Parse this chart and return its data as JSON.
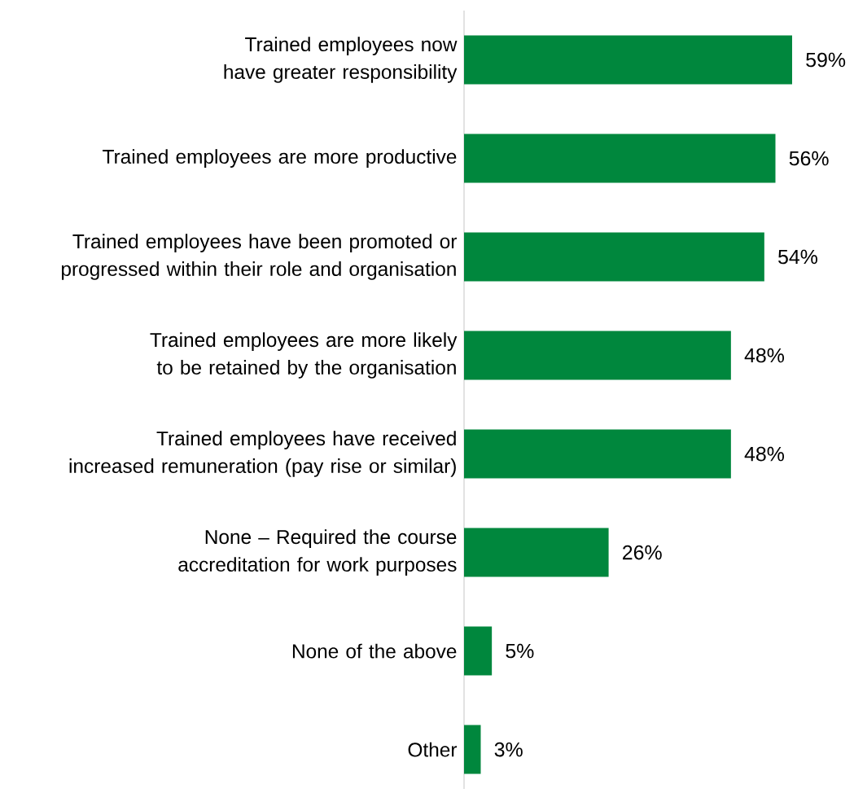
{
  "chart_data": {
    "type": "bar",
    "orientation": "horizontal",
    "categories": [
      "Trained employees now have greater responsibility",
      "Trained employees are more productive",
      "Trained employees have been promoted or progressed within their role and organisation",
      "Trained employees are more likely to be retained by the organisation",
      "Trained employees have received increased remuneration (pay rise or similar)",
      "None – Required the course accreditation for work purposes",
      "None of the above",
      "Other"
    ],
    "values": [
      59,
      56,
      54,
      48,
      48,
      26,
      5,
      3
    ],
    "value_labels": [
      "59%",
      "56%",
      "54%",
      "48%",
      "48%",
      "26%",
      "5%",
      "3%"
    ],
    "color": "#00873d"
  }
}
